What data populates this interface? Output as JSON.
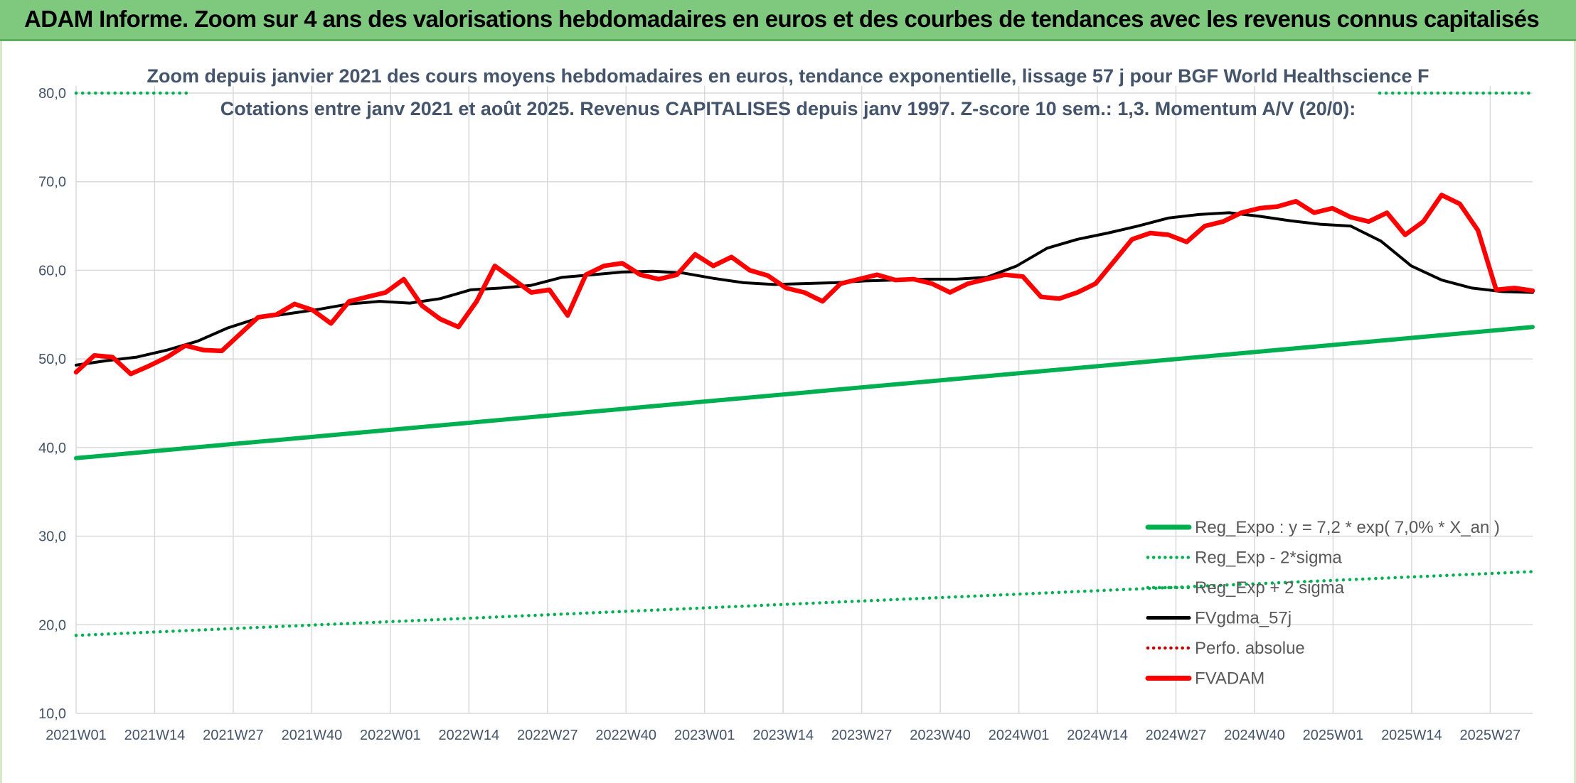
{
  "banner": {
    "title": "ADAM Informe. Zoom sur 4 ans des valorisations hebdomadaires en euros et des courbes de tendances avec les revenus connus capitalisés"
  },
  "colors": {
    "banner_bg": "#7fc97f",
    "reg_expo": "#00b050",
    "fvgdma": "#000000",
    "fvadam": "#ff0000",
    "perfo": "#c00000"
  },
  "chart_data": {
    "type": "line",
    "title": "Zoom depuis janvier 2021 des cours moyens hebdomadaires en euros, tendance exponentielle, lissage 57 j pour BGF World Healthscience F",
    "subtitle": "Cotations entre janv 2021 et août 2025. Revenus CAPITALISES depuis janv 1997. Z-score 10 sem.: 1,3. Momentum A/V (20/0):",
    "xlabel": "",
    "ylabel": "",
    "ylim": [
      10,
      80
    ],
    "yticks": [
      "80,0",
      "70,0",
      "60,0",
      "50,0",
      "40,0",
      "30,0",
      "20,0",
      "10,0"
    ],
    "x_ticks": [
      "2021W01",
      "2021W14",
      "2021W27",
      "2021W40",
      "2022W01",
      "2022W14",
      "2022W27",
      "2022W40",
      "2023W01",
      "2023W14",
      "2023W27",
      "2023W40",
      "2024W01",
      "2024W14",
      "2024W27",
      "2024W40",
      "2025W01",
      "2025W14",
      "2025W27"
    ],
    "grid": true,
    "legend_position": "bottom-right",
    "series": [
      {
        "name": "Reg_Expo : y = 7,2 * exp( 7,0% *  X_an )",
        "style": "solid",
        "x": [
          0,
          240
        ],
        "values": [
          38.8,
          53.6
        ]
      },
      {
        "name": "Reg_Exp - 2*sigma",
        "style": "dotted",
        "x": [
          0,
          240
        ],
        "values": [
          18.8,
          26.0
        ]
      },
      {
        "name": "Reg_Exp + 2 sigma",
        "style": "dotted",
        "x": [
          0,
          240
        ],
        "values": [
          80.0,
          80.0
        ]
      },
      {
        "name": "FVgdma_57j",
        "style": "solid",
        "x": [
          0,
          5,
          10,
          15,
          20,
          25,
          30,
          35,
          40,
          45,
          50,
          55,
          60,
          65,
          70,
          75,
          80,
          85,
          90,
          95,
          100,
          105,
          110,
          115,
          120,
          125,
          130,
          135,
          140,
          145,
          150,
          155,
          160,
          165,
          170,
          175,
          180,
          185,
          190,
          195,
          200,
          205,
          210,
          215,
          220,
          225,
          230,
          235,
          240
        ],
        "values": [
          49.3,
          49.8,
          50.2,
          51.0,
          52.0,
          53.5,
          54.6,
          55.1,
          55.6,
          56.2,
          56.5,
          56.3,
          56.8,
          57.8,
          58.0,
          58.3,
          59.2,
          59.5,
          59.8,
          59.9,
          59.7,
          59.1,
          58.6,
          58.4,
          58.5,
          58.6,
          58.8,
          58.9,
          59.0,
          59.0,
          59.2,
          60.5,
          62.5,
          63.5,
          64.2,
          65.0,
          65.9,
          66.3,
          66.5,
          66.1,
          65.6,
          65.2,
          65.0,
          63.3,
          60.5,
          58.9,
          58.0,
          57.6,
          57.5
        ]
      },
      {
        "name": "Perfo. absolue",
        "style": "dotted",
        "x": [],
        "values": []
      },
      {
        "name": "FVADAM",
        "style": "solid",
        "x": [
          0,
          3,
          6,
          9,
          12,
          15,
          18,
          21,
          24,
          27,
          30,
          33,
          36,
          39,
          42,
          45,
          48,
          51,
          54,
          57,
          60,
          63,
          66,
          69,
          72,
          75,
          78,
          81,
          84,
          87,
          90,
          93,
          96,
          99,
          102,
          105,
          108,
          111,
          114,
          117,
          120,
          123,
          126,
          129,
          132,
          135,
          138,
          141,
          144,
          147,
          150,
          153,
          156,
          159,
          162,
          165,
          168,
          171,
          174,
          177,
          180,
          183,
          186,
          189,
          192,
          195,
          198,
          201,
          204,
          207,
          210,
          213,
          216,
          219,
          222,
          225,
          228,
          231,
          234,
          237,
          240
        ],
        "values": [
          48.5,
          50.4,
          50.2,
          48.3,
          49.2,
          50.2,
          51.5,
          51.0,
          50.9,
          52.8,
          54.7,
          55.0,
          56.2,
          55.5,
          54.0,
          56.5,
          57.0,
          57.5,
          59.0,
          56.0,
          54.5,
          53.6,
          56.5,
          60.5,
          59.0,
          57.5,
          57.8,
          54.9,
          59.5,
          60.5,
          60.8,
          59.5,
          59.0,
          59.5,
          61.8,
          60.5,
          61.5,
          60.0,
          59.4,
          58.0,
          57.5,
          56.5,
          58.5,
          59.0,
          59.5,
          58.9,
          59.0,
          58.5,
          57.5,
          58.5,
          59.0,
          59.5,
          59.3,
          57.0,
          56.8,
          57.5,
          58.5,
          61.0,
          63.5,
          64.2,
          64.0,
          63.2,
          65.0,
          65.5,
          66.5,
          67.0,
          67.2,
          67.8,
          66.5,
          67.0,
          66.0,
          65.5,
          66.5,
          64.0,
          65.5,
          68.5,
          67.5,
          64.5,
          57.8,
          58.0,
          57.7
        ]
      }
    ]
  }
}
